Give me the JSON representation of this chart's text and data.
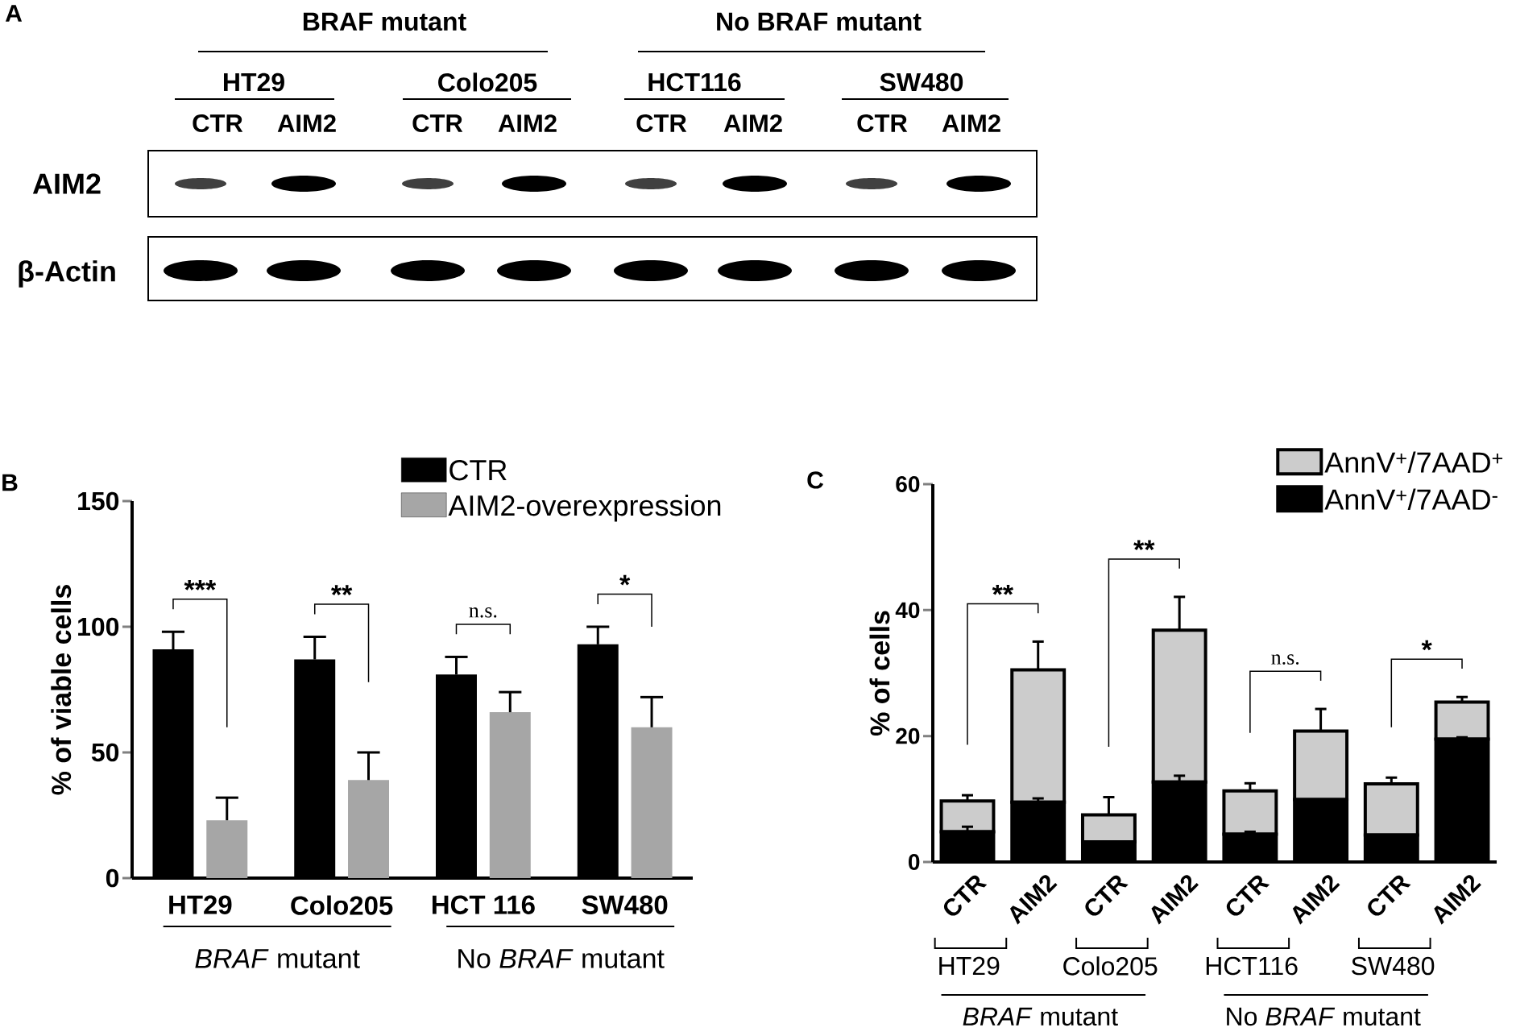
{
  "chart_data": [
    {
      "type": "other",
      "title": "A",
      "annotations": [
        "BRAF mutant",
        "No BRAF mutant",
        "HT29",
        "Colo205",
        "HCT116",
        "SW480",
        "CTR",
        "AIM2",
        "CTR",
        "AIM2",
        "CTR",
        "AIM2",
        "CTR",
        "AIM2",
        "AIM2",
        "β-Actin"
      ]
    },
    {
      "type": "bar",
      "title": "B",
      "categories": [
        "HT29",
        "Colo205",
        "HCT 116",
        "SW480"
      ],
      "ylabel": "% of viable cells",
      "ylim": [
        0,
        150
      ],
      "yticks": [
        0,
        50,
        100,
        150
      ],
      "legend": "top right",
      "series": [
        {
          "name": "CTR",
          "color": "#000000",
          "values": [
            91,
            87,
            81,
            93
          ],
          "errors": [
            7,
            9,
            7,
            7
          ]
        },
        {
          "name": "AIM2-overexpression",
          "color": "#a6a6a6",
          "values": [
            23,
            39,
            66,
            60
          ],
          "errors": [
            9,
            11,
            8,
            12
          ]
        }
      ],
      "annotations": [
        "***",
        "**",
        "n.s.",
        "*",
        "*BRAF* mutant",
        "No *BRAF* mutant"
      ]
    },
    {
      "type": "bar",
      "title": "C",
      "stacked": true,
      "categories": [
        "CTR",
        "AIM2",
        "CTR",
        "AIM2",
        "CTR",
        "AIM2",
        "CTR",
        "AIM2"
      ],
      "ylabel": "% of cells",
      "ylim": [
        0,
        60
      ],
      "yticks": [
        0,
        20,
        40,
        60
      ],
      "legend": "top right",
      "series": [
        {
          "name": "AnnV$^{+}$/7AAD$^{-}$",
          "color": "#000000",
          "values": [
            4.8,
            9.5,
            3.2,
            12.7,
            4.4,
            9.9,
            4.3,
            19.5
          ],
          "errors": [
            0.8,
            0.6,
            null,
            1.0,
            0.4,
            null,
            null,
            0.3
          ]
        },
        {
          "name": "AnnV$^{+}$/7AAD$^{+}$",
          "color": "#cccccc",
          "values": [
            4.9,
            21.0,
            4.3,
            24.1,
            6.9,
            10.9,
            8.1,
            5.9
          ],
          "errors": [
            0.9,
            4.5,
            2.8,
            5.3,
            1.2,
            3.5,
            1.0,
            0.8
          ]
        }
      ],
      "annotations": [
        "**",
        "**",
        "n.s.",
        "*",
        "HT29",
        "Colo205",
        "HCT116",
        "SW480",
        "*BRAF* mutant",
        "No *BRAF* mutant"
      ]
    }
  ]
}
